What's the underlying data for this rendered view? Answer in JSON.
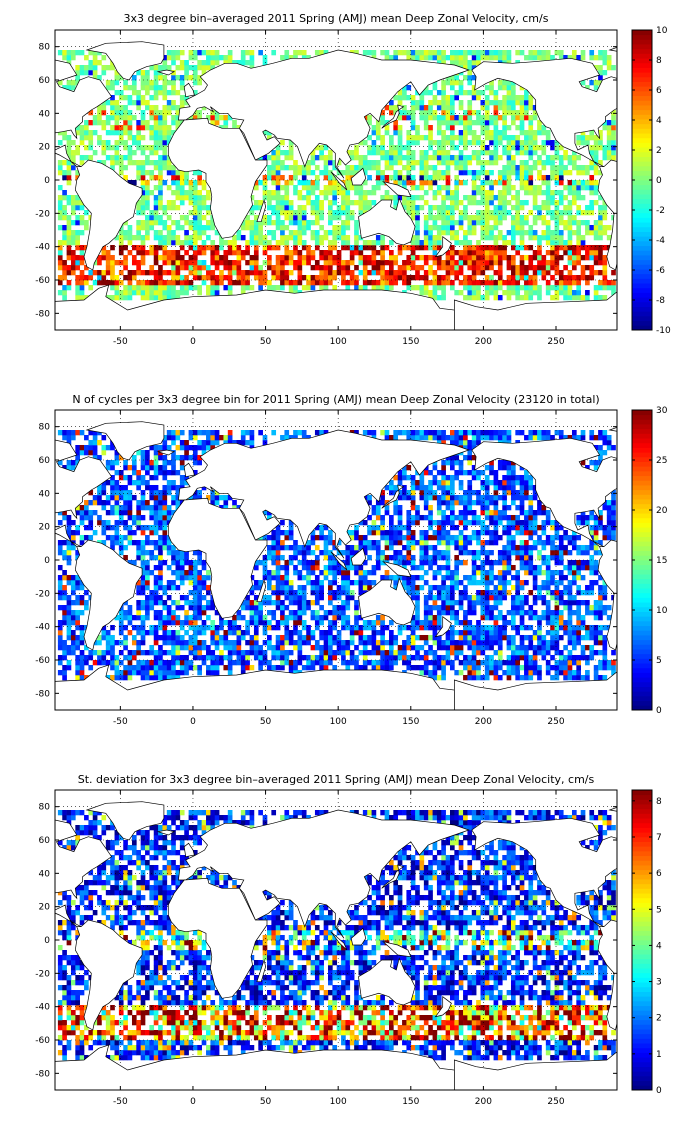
{
  "figure": {
    "background": "#ffffff"
  },
  "chart_data": [
    {
      "type": "heatmap",
      "title": "3x3 degree bin–averaged 2011 Spring (AMJ) mean Deep Zonal Velocity, cm/s",
      "xlabel": "",
      "ylabel": "",
      "xlim": [
        -95,
        292
      ],
      "ylim": [
        -90,
        90
      ],
      "xticks": [
        -50,
        0,
        50,
        100,
        150,
        200,
        250
      ],
      "yticks": [
        -80,
        -60,
        -40,
        -20,
        0,
        20,
        40,
        60,
        80
      ],
      "grid": true,
      "colorbar": {
        "range": [
          -10,
          10
        ],
        "ticks": [
          -10,
          -8,
          -6,
          -4,
          -2,
          0,
          2,
          4,
          6,
          8,
          10
        ],
        "colormap": "jet"
      },
      "bin_size_deg": 3,
      "summary": "Mostly near-zero (green/cyan) values globally; strong positive (red) eastward bands along the Antarctic Circumpolar Current near -45 to -60 and along the equator in the Pacific; scattered negative (blue) values."
    },
    {
      "type": "heatmap",
      "title": "N of cycles per 3x3 degree bin for 2011 Spring (AMJ) mean Deep Zonal Velocity (23120 in total)",
      "xlabel": "",
      "ylabel": "",
      "xlim": [
        -95,
        292
      ],
      "ylim": [
        -90,
        90
      ],
      "xticks": [
        -50,
        0,
        50,
        100,
        150,
        200,
        250
      ],
      "yticks": [
        -80,
        -60,
        -40,
        -20,
        0,
        20,
        40,
        60,
        80
      ],
      "grid": true,
      "colorbar": {
        "range": [
          0,
          30
        ],
        "ticks": [
          0,
          5,
          10,
          15,
          20,
          25,
          30
        ],
        "colormap": "jet"
      },
      "bin_size_deg": 3,
      "summary": "Most bins have low counts (dark to medium blue, ~1–10 cycles); scattered higher counts (cyan/yellow/red up to 30) especially in the northwest Pacific and Southern Ocean."
    },
    {
      "type": "heatmap",
      "title": "St. deviation for 3x3 degree bin–averaged 2011 Spring (AMJ) mean Deep Zonal Velocity, cm/s",
      "xlabel": "",
      "ylabel": "",
      "xlim": [
        -95,
        292
      ],
      "ylim": [
        -90,
        90
      ],
      "xticks": [
        -50,
        0,
        50,
        100,
        150,
        200,
        250
      ],
      "yticks": [
        -80,
        -60,
        -40,
        -20,
        0,
        20,
        40,
        60,
        80
      ],
      "grid": true,
      "colorbar": {
        "range": [
          0,
          8.3
        ],
        "ticks": [
          0,
          1,
          2,
          3,
          4,
          5,
          6,
          7,
          8
        ],
        "colormap": "jet"
      },
      "bin_size_deg": 3,
      "summary": "Low standard deviation (blue) across most ocean interiors; high values (red, 6–8) concentrated in the Southern Ocean band near -45 to -55, western boundary currents and the equatorial band."
    }
  ]
}
